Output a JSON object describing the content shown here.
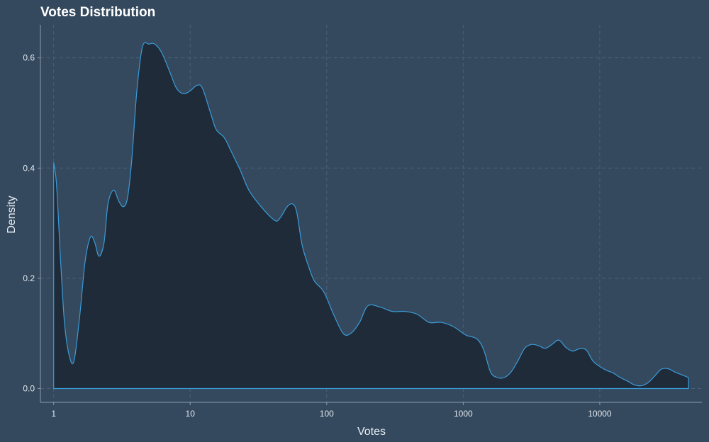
{
  "chart_data": {
    "type": "area",
    "title": "Votes Distribution",
    "xlabel": "Votes",
    "ylabel": "Density",
    "x_scale": "log10",
    "xlim": [
      0.8,
      56000
    ],
    "ylim": [
      -0.025,
      0.66
    ],
    "x_ticks": [
      {
        "value": 1,
        "label": "1"
      },
      {
        "value": 10,
        "label": "10"
      },
      {
        "value": 100,
        "label": "100"
      },
      {
        "value": 1000,
        "label": "1000"
      },
      {
        "value": 10000,
        "label": "10000"
      }
    ],
    "y_ticks": [
      {
        "value": 0.0,
        "label": "0.0"
      },
      {
        "value": 0.2,
        "label": "0.2"
      },
      {
        "value": 0.4,
        "label": "0.4"
      },
      {
        "value": 0.6,
        "label": "0.6"
      }
    ],
    "grid": true,
    "colors": {
      "background": "#34495e",
      "fill": "#1f2b38",
      "line": "#3a9bd9"
    },
    "series": [
      {
        "x": [
          1,
          1.05,
          1.12,
          1.2,
          1.3,
          1.41,
          1.55,
          1.7,
          1.86,
          2.0,
          2.15,
          2.34,
          2.5,
          2.75,
          3.0,
          3.24,
          3.47,
          3.72,
          4.07,
          4.47,
          5.0,
          5.5,
          6.17,
          7.08,
          7.94,
          8.91,
          10.0,
          11.2,
          12.3,
          14.1,
          15.5,
          17.8,
          20.0,
          23.4,
          26.9,
          33.1,
          41.7,
          45.7,
          51.3,
          56.2,
          60.3,
          66.1,
          74.1,
          81.3,
          95.5,
          112,
          132,
          150,
          174,
          200,
          245,
          302,
          372,
          458,
          562,
          692,
          851,
          1047,
          1259,
          1413,
          1585,
          1778,
          1995,
          2239,
          2512,
          2818,
          3162,
          3548,
          3981,
          4467,
          5012,
          5623,
          6310,
          7079,
          7943,
          8913,
          10000,
          11220,
          12589,
          14125,
          15849,
          17783,
          19953,
          22387,
          25119,
          28184,
          31623,
          35481,
          39811,
          44668
        ],
        "y": [
          0.41,
          0.37,
          0.24,
          0.12,
          0.06,
          0.05,
          0.13,
          0.23,
          0.275,
          0.265,
          0.24,
          0.265,
          0.335,
          0.36,
          0.34,
          0.33,
          0.345,
          0.41,
          0.54,
          0.62,
          0.625,
          0.625,
          0.61,
          0.575,
          0.545,
          0.535,
          0.54,
          0.55,
          0.545,
          0.5,
          0.47,
          0.455,
          0.43,
          0.395,
          0.36,
          0.33,
          0.305,
          0.31,
          0.33,
          0.335,
          0.32,
          0.26,
          0.22,
          0.195,
          0.175,
          0.135,
          0.1,
          0.1,
          0.12,
          0.15,
          0.148,
          0.14,
          0.14,
          0.135,
          0.12,
          0.12,
          0.112,
          0.097,
          0.09,
          0.07,
          0.03,
          0.02,
          0.02,
          0.03,
          0.05,
          0.073,
          0.08,
          0.078,
          0.073,
          0.08,
          0.088,
          0.075,
          0.068,
          0.072,
          0.07,
          0.05,
          0.04,
          0.033,
          0.028,
          0.02,
          0.014,
          0.007,
          0.005,
          0.01,
          0.022,
          0.035,
          0.036,
          0.03,
          0.025,
          0.02
        ]
      }
    ]
  }
}
